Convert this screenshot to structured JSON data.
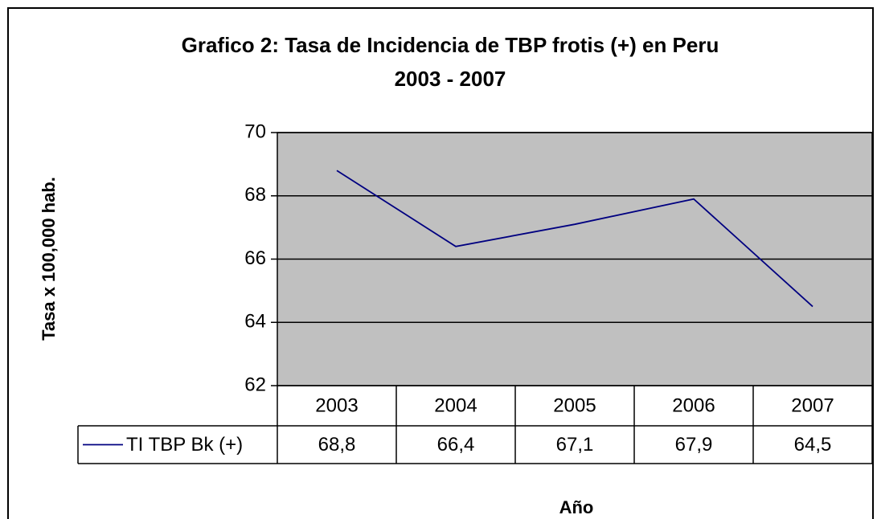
{
  "chart_data": {
    "type": "line",
    "title": [
      "Grafico 2: Tasa de Incidencia de TBP frotis (+) en Peru",
      "2003 - 2007"
    ],
    "y_label": "Tasa x 100,000 hab.",
    "x_label": "Año",
    "categories": [
      "2003",
      "2004",
      "2005",
      "2006",
      "2007"
    ],
    "series": [
      {
        "name": "TI TBP Bk (+)",
        "color": "#000080",
        "values": [
          68.8,
          66.4,
          67.1,
          67.9,
          64.5
        ],
        "value_labels": [
          "68,8",
          "66,4",
          "67,1",
          "67,9",
          "64,5"
        ]
      }
    ],
    "ylim": [
      62,
      70
    ],
    "yticks": [
      62,
      64,
      66,
      68,
      70
    ],
    "grid": true,
    "plot_background": "#c0c0c0"
  }
}
